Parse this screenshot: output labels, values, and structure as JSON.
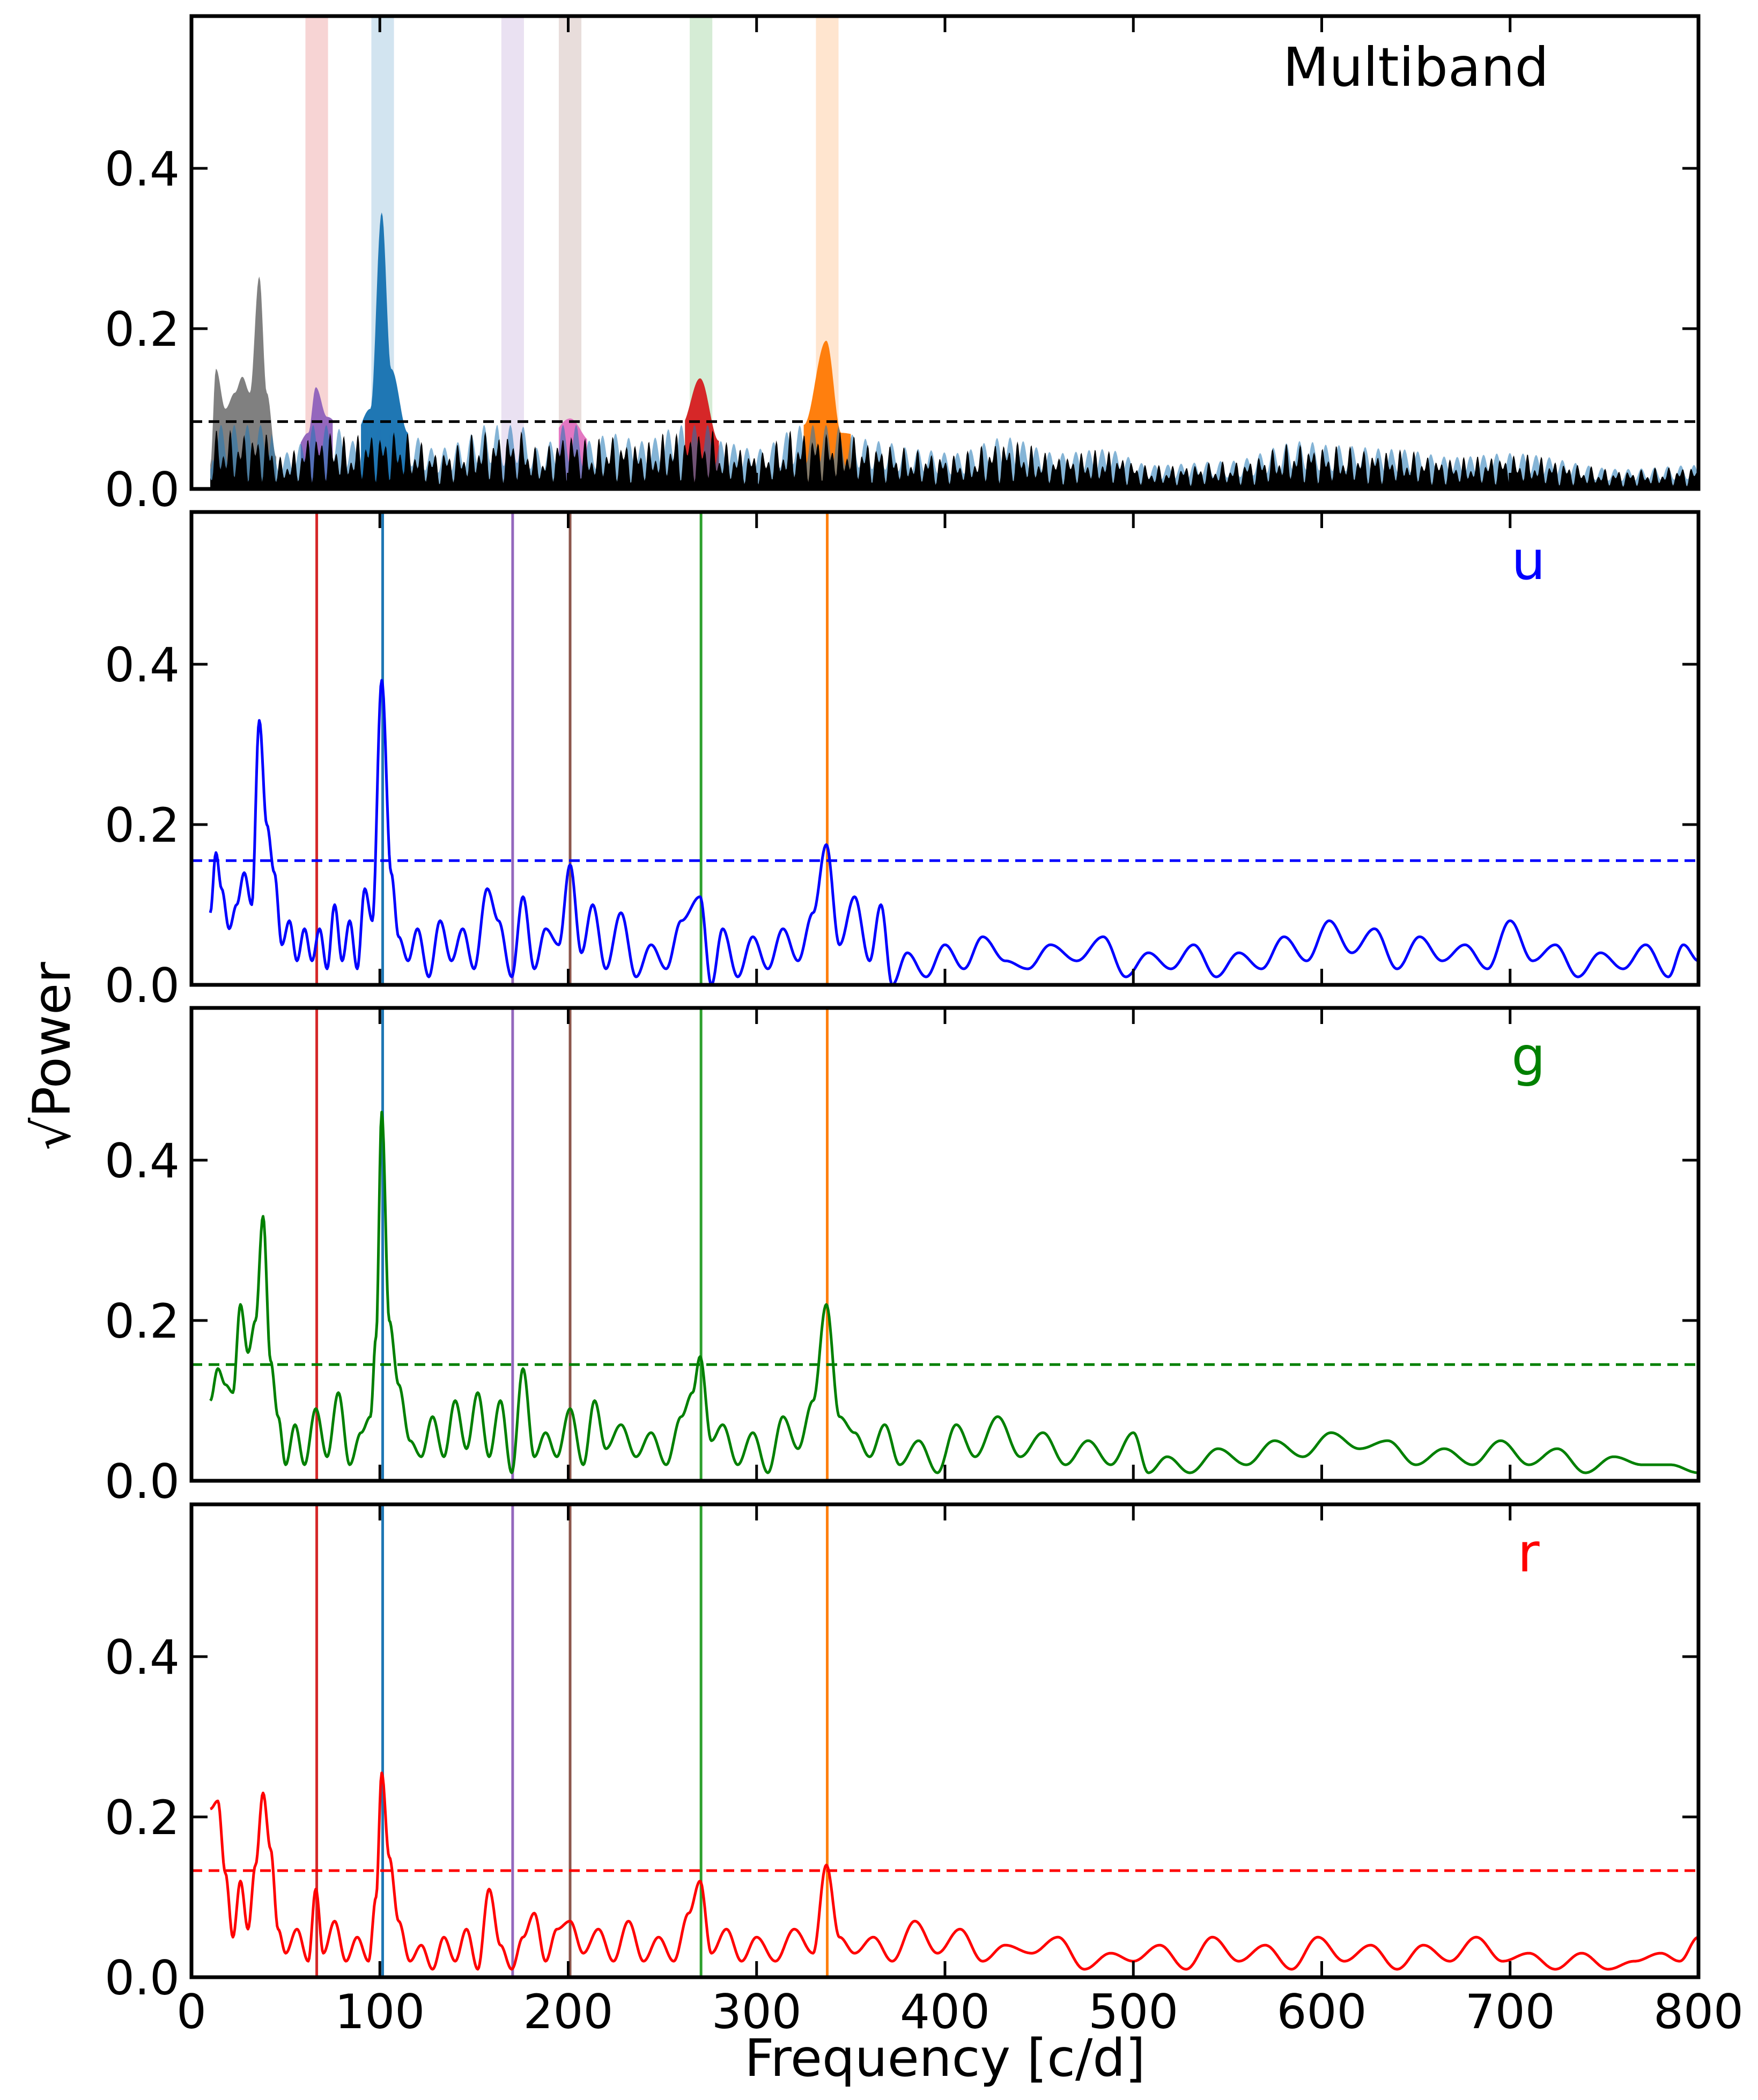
{
  "figure": {
    "ylabel": "√Power",
    "xlabel": "Frequency [c/d]"
  },
  "chart_data": {
    "type": "line",
    "xlim": [
      0,
      800
    ],
    "ylim": [
      0,
      0.59
    ],
    "xticks": [
      0,
      100,
      200,
      300,
      400,
      500,
      600,
      700,
      800
    ],
    "yticks": [
      0.0,
      0.2,
      0.4
    ],
    "ytick_labels": [
      "0.0",
      "0.2",
      "0.4"
    ],
    "frequency_markers": [
      {
        "freq": 66.5,
        "color": "#d62728"
      },
      {
        "freq": 101.5,
        "color": "#1f77b4"
      },
      {
        "freq": 170.5,
        "color": "#9467bd"
      },
      {
        "freq": 201.0,
        "color": "#8c564b"
      },
      {
        "freq": 270.5,
        "color": "#2ca02c"
      },
      {
        "freq": 337.5,
        "color": "#ff7f0e"
      }
    ],
    "panels": [
      {
        "label": "Multiband",
        "label_color": "#000000",
        "kind": "multiband",
        "threshold": 0.084,
        "threshold_color": "#000000",
        "peaks": [
          {
            "x": 10,
            "y": 0.03
          },
          {
            "x": 13,
            "y": 0.15
          },
          {
            "x": 18,
            "y": 0.1
          },
          {
            "x": 23,
            "y": 0.12
          },
          {
            "x": 27,
            "y": 0.14
          },
          {
            "x": 31,
            "y": 0.12
          },
          {
            "x": 36,
            "y": 0.265
          },
          {
            "x": 40,
            "y": 0.12
          },
          {
            "x": 45,
            "y": 0.04
          },
          {
            "x": 55,
            "y": 0.05
          },
          {
            "x": 62,
            "y": 0.07
          },
          {
            "x": 66,
            "y": 0.127
          },
          {
            "x": 72,
            "y": 0.09
          },
          {
            "x": 85,
            "y": 0.06
          },
          {
            "x": 95,
            "y": 0.1
          },
          {
            "x": 101,
            "y": 0.345
          },
          {
            "x": 106,
            "y": 0.15
          },
          {
            "x": 115,
            "y": 0.07
          },
          {
            "x": 130,
            "y": 0.05
          },
          {
            "x": 145,
            "y": 0.06
          },
          {
            "x": 158,
            "y": 0.11
          },
          {
            "x": 165,
            "y": 0.07
          },
          {
            "x": 171,
            "y": 0.09
          },
          {
            "x": 185,
            "y": 0.05
          },
          {
            "x": 201,
            "y": 0.088
          },
          {
            "x": 212,
            "y": 0.06
          },
          {
            "x": 222,
            "y": 0.07
          },
          {
            "x": 240,
            "y": 0.06
          },
          {
            "x": 260,
            "y": 0.08
          },
          {
            "x": 270,
            "y": 0.138
          },
          {
            "x": 280,
            "y": 0.06
          },
          {
            "x": 300,
            "y": 0.05
          },
          {
            "x": 325,
            "y": 0.08
          },
          {
            "x": 337,
            "y": 0.185
          },
          {
            "x": 345,
            "y": 0.07
          },
          {
            "x": 365,
            "y": 0.06
          },
          {
            "x": 385,
            "y": 0.05
          },
          {
            "x": 405,
            "y": 0.045
          },
          {
            "x": 432,
            "y": 0.065
          },
          {
            "x": 460,
            "y": 0.045
          },
          {
            "x": 485,
            "y": 0.05
          },
          {
            "x": 510,
            "y": 0.03
          },
          {
            "x": 550,
            "y": 0.035
          },
          {
            "x": 590,
            "y": 0.06
          },
          {
            "x": 605,
            "y": 0.055
          },
          {
            "x": 640,
            "y": 0.05
          },
          {
            "x": 670,
            "y": 0.04
          },
          {
            "x": 700,
            "y": 0.045
          },
          {
            "x": 760,
            "y": 0.025
          },
          {
            "x": 800,
            "y": 0.03
          }
        ]
      },
      {
        "label": "u",
        "label_color": "#0000ff",
        "kind": "line",
        "color": "#0000ff",
        "threshold": 0.155,
        "x": [
          10,
          13,
          16,
          20,
          24,
          28,
          32,
          36,
          40,
          44,
          48,
          52,
          56,
          60,
          64,
          68,
          72,
          76,
          80,
          84,
          88,
          92,
          96,
          101,
          106,
          110,
          115,
          120,
          126,
          132,
          138,
          144,
          150,
          157,
          163,
          170,
          176,
          182,
          188,
          195,
          201,
          207,
          213,
          220,
          228,
          236,
          244,
          252,
          260,
          270,
          276,
          282,
          290,
          298,
          306,
          314,
          322,
          330,
          337,
          344,
          352,
          360,
          366,
          372,
          380,
          390,
          400,
          410,
          420,
          432,
          444,
          456,
          470,
          484,
          496,
          508,
          520,
          532,
          544,
          556,
          568,
          580,
          592,
          604,
          616,
          628,
          640,
          652,
          664,
          676,
          688,
          700,
          712,
          724,
          736,
          748,
          760,
          772,
          784,
          792,
          800
        ],
        "y": [
          0.09,
          0.165,
          0.12,
          0.07,
          0.1,
          0.14,
          0.1,
          0.33,
          0.2,
          0.14,
          0.05,
          0.08,
          0.03,
          0.07,
          0.03,
          0.07,
          0.02,
          0.1,
          0.03,
          0.08,
          0.02,
          0.12,
          0.08,
          0.38,
          0.14,
          0.06,
          0.03,
          0.07,
          0.01,
          0.08,
          0.03,
          0.07,
          0.02,
          0.12,
          0.08,
          0.01,
          0.11,
          0.02,
          0.07,
          0.05,
          0.15,
          0.04,
          0.1,
          0.02,
          0.09,
          0.01,
          0.05,
          0.02,
          0.08,
          0.11,
          0.0,
          0.07,
          0.01,
          0.06,
          0.02,
          0.07,
          0.03,
          0.09,
          0.175,
          0.05,
          0.11,
          0.03,
          0.1,
          0.0,
          0.04,
          0.01,
          0.05,
          0.02,
          0.06,
          0.03,
          0.02,
          0.05,
          0.03,
          0.06,
          0.01,
          0.04,
          0.02,
          0.05,
          0.01,
          0.04,
          0.02,
          0.06,
          0.03,
          0.08,
          0.04,
          0.07,
          0.02,
          0.06,
          0.03,
          0.05,
          0.02,
          0.08,
          0.03,
          0.05,
          0.01,
          0.04,
          0.02,
          0.05,
          0.01,
          0.05,
          0.03
        ]
      },
      {
        "label": "g",
        "label_color": "#008000",
        "kind": "line",
        "color": "#008000",
        "threshold": 0.145,
        "x": [
          10,
          14,
          18,
          22,
          26,
          30,
          34,
          38,
          42,
          46,
          50,
          55,
          60,
          66,
          72,
          78,
          84,
          90,
          95,
          98,
          101,
          105,
          110,
          116,
          122,
          128,
          134,
          140,
          146,
          152,
          158,
          164,
          170,
          176,
          182,
          188,
          194,
          201,
          208,
          214,
          220,
          228,
          236,
          244,
          252,
          260,
          266,
          270,
          276,
          282,
          290,
          298,
          306,
          314,
          322,
          330,
          337,
          344,
          352,
          360,
          368,
          376,
          386,
          396,
          406,
          416,
          428,
          440,
          452,
          464,
          476,
          488,
          500,
          508,
          518,
          530,
          545,
          560,
          575,
          590,
          605,
          620,
          635,
          650,
          665,
          680,
          695,
          710,
          725,
          740,
          755,
          770,
          785,
          800
        ],
        "y": [
          0.1,
          0.14,
          0.12,
          0.11,
          0.22,
          0.16,
          0.2,
          0.33,
          0.15,
          0.08,
          0.02,
          0.07,
          0.02,
          0.09,
          0.03,
          0.11,
          0.02,
          0.06,
          0.08,
          0.18,
          0.46,
          0.2,
          0.12,
          0.05,
          0.03,
          0.08,
          0.03,
          0.1,
          0.04,
          0.11,
          0.03,
          0.1,
          0.01,
          0.14,
          0.03,
          0.06,
          0.03,
          0.09,
          0.02,
          0.1,
          0.04,
          0.07,
          0.03,
          0.06,
          0.02,
          0.08,
          0.11,
          0.155,
          0.05,
          0.07,
          0.02,
          0.06,
          0.01,
          0.08,
          0.04,
          0.1,
          0.22,
          0.08,
          0.06,
          0.03,
          0.07,
          0.02,
          0.05,
          0.01,
          0.07,
          0.03,
          0.08,
          0.03,
          0.06,
          0.02,
          0.05,
          0.02,
          0.06,
          0.01,
          0.03,
          0.01,
          0.04,
          0.02,
          0.05,
          0.03,
          0.06,
          0.04,
          0.05,
          0.02,
          0.04,
          0.02,
          0.05,
          0.02,
          0.04,
          0.01,
          0.03,
          0.02,
          0.02,
          0.01
        ]
      },
      {
        "label": "r",
        "label_color": "#ff0000",
        "kind": "line",
        "color": "#ff0000",
        "threshold": 0.133,
        "x": [
          10,
          14,
          18,
          22,
          26,
          30,
          34,
          38,
          42,
          46,
          50,
          56,
          62,
          66,
          70,
          76,
          82,
          88,
          94,
          98,
          101,
          105,
          110,
          116,
          122,
          128,
          134,
          140,
          146,
          152,
          158,
          164,
          170,
          176,
          182,
          188,
          194,
          201,
          208,
          216,
          224,
          232,
          240,
          248,
          256,
          264,
          270,
          276,
          284,
          292,
          300,
          310,
          320,
          330,
          337,
          344,
          352,
          362,
          372,
          384,
          396,
          408,
          420,
          432,
          446,
          460,
          474,
          488,
          500,
          514,
          528,
          542,
          556,
          570,
          584,
          598,
          612,
          626,
          640,
          654,
          668,
          682,
          696,
          710,
          724,
          738,
          752,
          766,
          780,
          790,
          800
        ],
        "y": [
          0.21,
          0.22,
          0.13,
          0.05,
          0.12,
          0.06,
          0.14,
          0.23,
          0.16,
          0.06,
          0.03,
          0.06,
          0.02,
          0.11,
          0.03,
          0.07,
          0.02,
          0.05,
          0.02,
          0.1,
          0.255,
          0.15,
          0.07,
          0.02,
          0.04,
          0.01,
          0.05,
          0.02,
          0.06,
          0.01,
          0.11,
          0.04,
          0.01,
          0.05,
          0.08,
          0.02,
          0.06,
          0.07,
          0.03,
          0.06,
          0.02,
          0.07,
          0.02,
          0.05,
          0.02,
          0.08,
          0.12,
          0.03,
          0.06,
          0.02,
          0.05,
          0.02,
          0.06,
          0.03,
          0.14,
          0.05,
          0.03,
          0.05,
          0.02,
          0.07,
          0.03,
          0.06,
          0.02,
          0.04,
          0.03,
          0.05,
          0.01,
          0.03,
          0.02,
          0.04,
          0.01,
          0.05,
          0.02,
          0.04,
          0.01,
          0.05,
          0.02,
          0.04,
          0.01,
          0.04,
          0.02,
          0.05,
          0.02,
          0.03,
          0.01,
          0.03,
          0.01,
          0.02,
          0.03,
          0.02,
          0.05
        ]
      }
    ],
    "multiband_fills": [
      {
        "color": "#808080",
        "range": [
          10,
          45
        ]
      },
      {
        "color": "#1f77b4",
        "range": [
          90,
          115
        ]
      },
      {
        "color": "#ff7f0e",
        "range": [
          325,
          350
        ]
      },
      {
        "color": "#2ca02c",
        "range": [
          262,
          280
        ]
      },
      {
        "color": "#d62728",
        "range": [
          262,
          280
        ]
      },
      {
        "color": "#e377c2",
        "range": [
          195,
          210
        ]
      },
      {
        "color": "#9467bd",
        "range": [
          58,
          75
        ]
      }
    ]
  }
}
